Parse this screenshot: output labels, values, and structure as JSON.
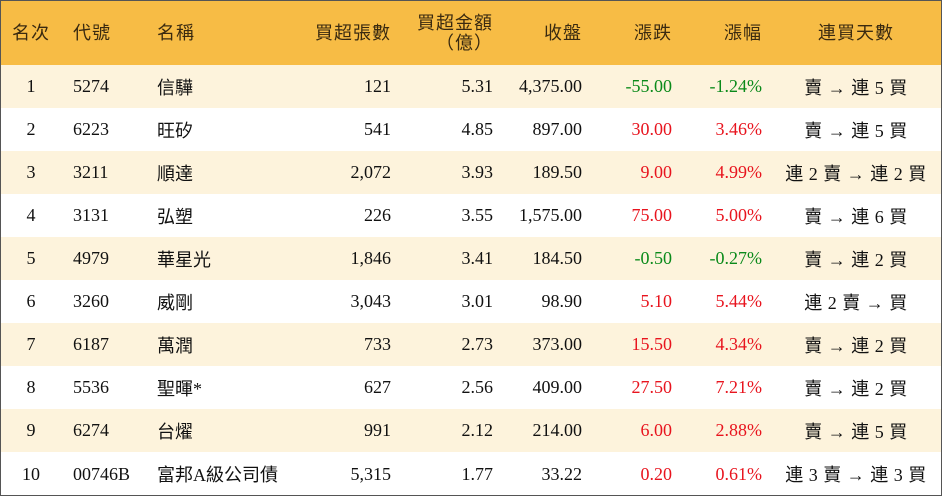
{
  "table": {
    "header": [
      [
        "名次"
      ],
      [
        "代號"
      ],
      [
        "名稱"
      ],
      [
        "買超張數"
      ],
      [
        "買超金額",
        "（億）"
      ],
      [
        "收盤"
      ],
      [
        "漲跌"
      ],
      [
        "漲幅"
      ],
      [
        "連買天數"
      ]
    ],
    "rows": [
      [
        "1",
        "5274",
        "信驊",
        "121",
        "5.31",
        "4,375.00",
        "-55.00",
        "-1.24%",
        "賣 → 連 5 買"
      ],
      [
        "2",
        "6223",
        "旺矽",
        "541",
        "4.85",
        "897.00",
        "30.00",
        "3.46%",
        "賣 → 連 5 買"
      ],
      [
        "3",
        "3211",
        "順達",
        "2,072",
        "3.93",
        "189.50",
        "9.00",
        "4.99%",
        "連 2 賣 → 連 2 買"
      ],
      [
        "4",
        "3131",
        "弘塑",
        "226",
        "3.55",
        "1,575.00",
        "75.00",
        "5.00%",
        "賣 → 連 6 買"
      ],
      [
        "5",
        "4979",
        "華星光",
        "1,846",
        "3.41",
        "184.50",
        "-0.50",
        "-0.27%",
        "賣 → 連 2 買"
      ],
      [
        "6",
        "3260",
        "威剛",
        "3,043",
        "3.01",
        "98.90",
        "5.10",
        "5.44%",
        "連 2 賣 → 買"
      ],
      [
        "7",
        "6187",
        "萬潤",
        "733",
        "2.73",
        "373.00",
        "15.50",
        "4.34%",
        "賣 → 連 2 買"
      ],
      [
        "8",
        "5536",
        "聖暉*",
        "627",
        "2.56",
        "409.00",
        "27.50",
        "7.21%",
        "賣 → 連 2 買"
      ],
      [
        "9",
        "6274",
        "台燿",
        "991",
        "2.12",
        "214.00",
        "6.00",
        "2.88%",
        "賣 → 連 5 買"
      ],
      [
        "10",
        "00746B",
        "富邦A級公司債",
        "5,315",
        "1.77",
        "33.22",
        "0.20",
        "0.61%",
        "連 3 賣 → 連 3 買"
      ]
    ],
    "up_color": "#e8141e",
    "down_color": "#0a8a1a"
  }
}
